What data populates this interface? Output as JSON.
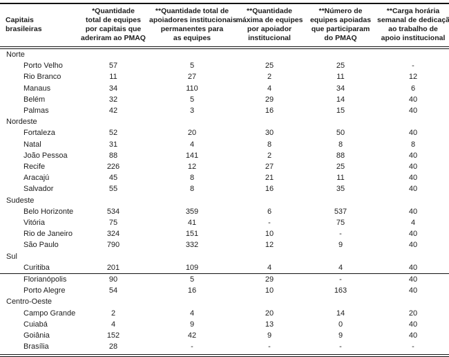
{
  "colors": {
    "text": "#1c1c1c",
    "border": "#111111",
    "background": "#ffffff"
  },
  "table": {
    "columns": [
      {
        "id": "capitals",
        "label": "Capitais\nbrasileiras"
      },
      {
        "id": "total_equipes",
        "label": "*Quantidade\ntotal de equipes\npor capitais que\naderiram ao PMAQ"
      },
      {
        "id": "apoiadores_permanentes",
        "label": "**Quantidade total de\napoiadores institucionais\npermanentes para\nas equipes"
      },
      {
        "id": "max_equipes_apoiador",
        "label": "**Quantidade\nmáxima de equipes\npor apoiador\ninstitucional"
      },
      {
        "id": "equipes_apoiadas",
        "label": "**Número de\nequipes apoiadas\nque participaram\ndo PMAQ"
      },
      {
        "id": "carga_horaria",
        "label": "**Carga horária\nsemanal de dedicação\nao trabalho de\napoio institucional"
      }
    ],
    "sections": [
      {
        "region": "Norte",
        "rows": [
          {
            "capital": "Porto Velho",
            "values": [
              "57",
              "5",
              "25",
              "25",
              "-"
            ]
          },
          {
            "capital": "Rio Branco",
            "values": [
              "11",
              "27",
              "2",
              "11",
              "12"
            ]
          },
          {
            "capital": "Manaus",
            "values": [
              "34",
              "110",
              "4",
              "34",
              "6"
            ]
          },
          {
            "capital": "Belém",
            "values": [
              "32",
              "5",
              "29",
              "14",
              "40"
            ]
          },
          {
            "capital": "Palmas",
            "values": [
              "42",
              "3",
              "16",
              "15",
              "40"
            ]
          }
        ]
      },
      {
        "region": "Nordeste",
        "rows": [
          {
            "capital": "Fortaleza",
            "values": [
              "52",
              "20",
              "30",
              "50",
              "40"
            ]
          },
          {
            "capital": "Natal",
            "values": [
              "31",
              "4",
              "8",
              "8",
              "8"
            ]
          },
          {
            "capital": "João Pessoa",
            "values": [
              "88",
              "141",
              "2",
              "88",
              "40"
            ]
          },
          {
            "capital": "Recife",
            "values": [
              "226",
              "12",
              "27",
              "25",
              "40"
            ]
          },
          {
            "capital": "Aracajú",
            "values": [
              "45",
              "8",
              "21",
              "11",
              "40"
            ]
          },
          {
            "capital": "Salvador",
            "values": [
              "55",
              "8",
              "16",
              "35",
              "40"
            ]
          }
        ]
      },
      {
        "region": "Sudeste",
        "rows": [
          {
            "capital": "Belo Horizonte",
            "values": [
              "534",
              "359",
              "6",
              "537",
              "40"
            ]
          },
          {
            "capital": "Vitória",
            "values": [
              "75",
              "41",
              "-",
              "75",
              "4"
            ]
          },
          {
            "capital": "Rio de Janeiro",
            "values": [
              "324",
              "151",
              "10",
              "-",
              "40"
            ]
          },
          {
            "capital": "São Paulo",
            "values": [
              "790",
              "332",
              "12",
              "9",
              "40"
            ]
          }
        ]
      },
      {
        "region": "Sul",
        "rows": [
          {
            "capital": "Curitiba",
            "values": [
              "201",
              "109",
              "4",
              "4",
              "40"
            ],
            "rule_below": true
          },
          {
            "capital": "Florianópolis",
            "values": [
              "90",
              "5",
              "29",
              "-",
              "40"
            ]
          },
          {
            "capital": "Porto Alegre",
            "values": [
              "54",
              "16",
              "10",
              "163",
              "40"
            ]
          }
        ]
      },
      {
        "region": "Centro-Oeste",
        "rows": [
          {
            "capital": "Campo Grande",
            "values": [
              "2",
              "4",
              "20",
              "14",
              "20"
            ]
          },
          {
            "capital": "Cuiabá",
            "values": [
              "4",
              "9",
              "13",
              "0",
              "40"
            ]
          },
          {
            "capital": "Goiânia",
            "values": [
              "152",
              "42",
              "9",
              "9",
              "40"
            ]
          },
          {
            "capital": "Brasília",
            "values": [
              "28",
              "-",
              "-",
              "-",
              "-"
            ]
          }
        ]
      }
    ]
  }
}
